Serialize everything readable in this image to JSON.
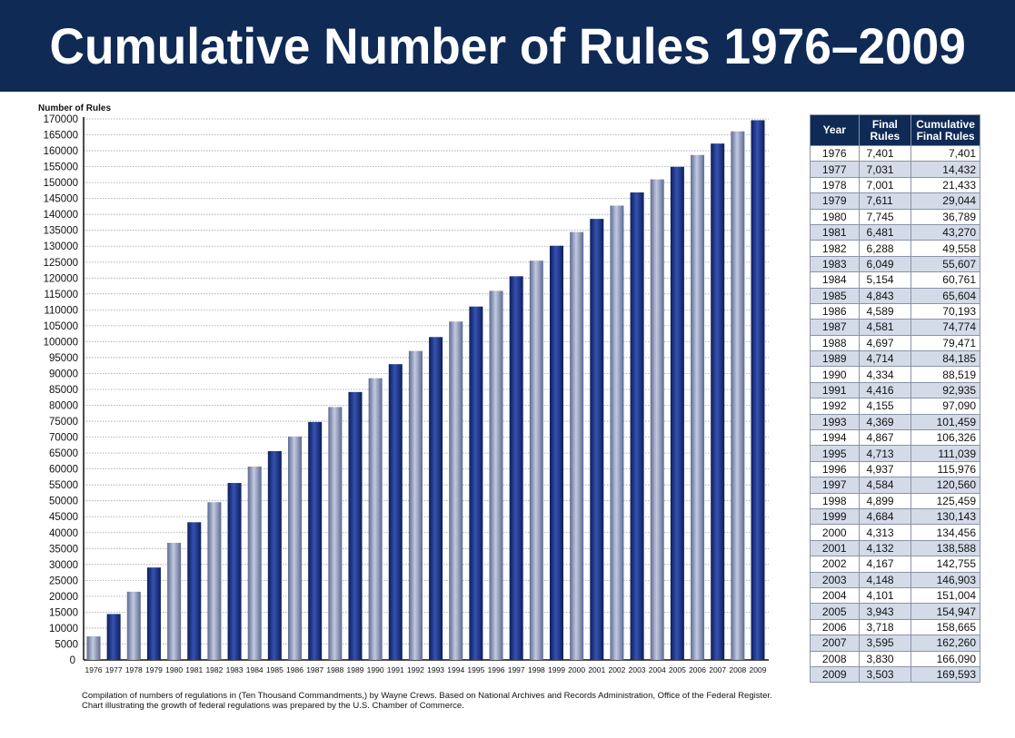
{
  "title": "Cumulative Number of Rules 1976–2009",
  "chart_data": {
    "type": "bar",
    "title": "Cumulative Number of Rules 1976–2009",
    "ylabel": "Number of Rules",
    "xlabel": "",
    "ylim": [
      0,
      170000
    ],
    "ytick_step": 5000,
    "grid": true,
    "categories": [
      "1976",
      "1977",
      "1978",
      "1979",
      "1980",
      "1981",
      "1982",
      "1983",
      "1984",
      "1985",
      "1986",
      "1987",
      "1988",
      "1989",
      "1990",
      "1991",
      "1992",
      "1993",
      "1994",
      "1995",
      "1996",
      "1997",
      "1998",
      "1999",
      "2000",
      "2001",
      "2002",
      "2003",
      "2004",
      "2005",
      "2006",
      "2007",
      "2008",
      "2009"
    ],
    "values": [
      7401,
      14432,
      21433,
      29044,
      36789,
      43270,
      49558,
      55607,
      60761,
      65604,
      70193,
      74774,
      79471,
      84185,
      88519,
      92935,
      97090,
      101459,
      106326,
      111039,
      115976,
      120560,
      125459,
      130143,
      134456,
      138588,
      142755,
      146903,
      151004,
      154947,
      158665,
      162260,
      166090,
      169593
    ],
    "colors": {
      "dark_bar": "#1a3180",
      "light_bar": "#8a96b8",
      "banner": "#0f2a55"
    }
  },
  "table": {
    "headers": [
      "Year",
      "Final Rules",
      "Cumulative Final Rules"
    ],
    "rows": [
      [
        "1976",
        "7,401",
        "7,401"
      ],
      [
        "1977",
        "7,031",
        "14,432"
      ],
      [
        "1978",
        "7,001",
        "21,433"
      ],
      [
        "1979",
        "7,611",
        "29,044"
      ],
      [
        "1980",
        "7,745",
        "36,789"
      ],
      [
        "1981",
        "6,481",
        "43,270"
      ],
      [
        "1982",
        "6,288",
        "49,558"
      ],
      [
        "1983",
        "6,049",
        "55,607"
      ],
      [
        "1984",
        "5,154",
        "60,761"
      ],
      [
        "1985",
        "4,843",
        "65,604"
      ],
      [
        "1986",
        "4,589",
        "70,193"
      ],
      [
        "1987",
        "4,581",
        "74,774"
      ],
      [
        "1988",
        "4,697",
        "79,471"
      ],
      [
        "1989",
        "4,714",
        "84,185"
      ],
      [
        "1990",
        "4,334",
        "88,519"
      ],
      [
        "1991",
        "4,416",
        "92,935"
      ],
      [
        "1992",
        "4,155",
        "97,090"
      ],
      [
        "1993",
        "4,369",
        "101,459"
      ],
      [
        "1994",
        "4,867",
        "106,326"
      ],
      [
        "1995",
        "4,713",
        "111,039"
      ],
      [
        "1996",
        "4,937",
        "115,976"
      ],
      [
        "1997",
        "4,584",
        "120,560"
      ],
      [
        "1998",
        "4,899",
        "125,459"
      ],
      [
        "1999",
        "4,684",
        "130,143"
      ],
      [
        "2000",
        "4,313",
        "134,456"
      ],
      [
        "2001",
        "4,132",
        "138,588"
      ],
      [
        "2002",
        "4,167",
        "142,755"
      ],
      [
        "2003",
        "4,148",
        "146,903"
      ],
      [
        "2004",
        "4,101",
        "151,004"
      ],
      [
        "2005",
        "3,943",
        "154,947"
      ],
      [
        "2006",
        "3,718",
        "158,665"
      ],
      [
        "2007",
        "3,595",
        "162,260"
      ],
      [
        "2008",
        "3,830",
        "166,090"
      ],
      [
        "2009",
        "3,503",
        "169,593"
      ]
    ]
  },
  "footnote": {
    "line1": "Compilation of numbers of regulations in (Ten Thousand Commandments,) by Wayne Crews. Based on National Archives and Records Administration, Office of the Federal Register.",
    "line2": "Chart illustrating the growth of federal regulations was prepared by the U.S. Chamber of Commerce."
  }
}
